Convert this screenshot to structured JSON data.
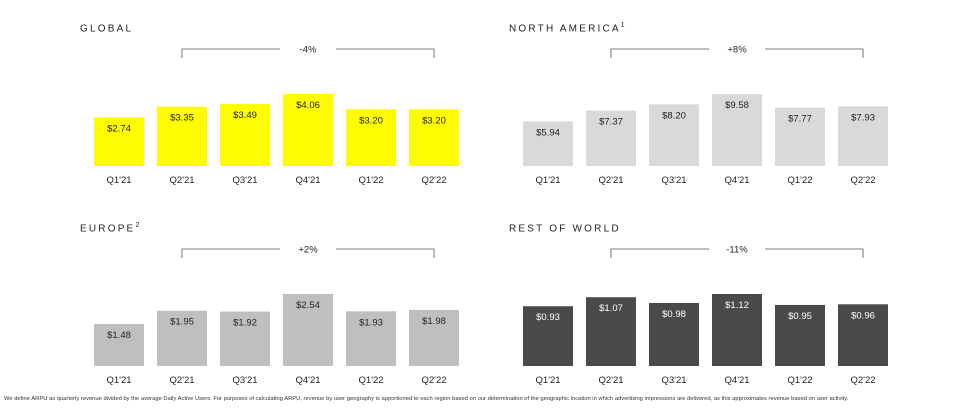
{
  "footnote": "We define ARPU as quarterly revenue divided by the average Daily Active Users. For purposes of calculating ARPU, revenue by user geography is apportioned to each region based on our determination of the geographic location in which advertising impressions are delivered, as this approximates revenue based on user activity.",
  "chart_data": [
    {
      "type": "bar",
      "title": "GLOBAL",
      "superscript": "",
      "categories": [
        "Q1'21",
        "Q2'21",
        "Q3'21",
        "Q4'21",
        "Q1'22",
        "Q2'22"
      ],
      "values": [
        2.74,
        3.35,
        3.49,
        4.06,
        3.2,
        3.2
      ],
      "labels": [
        "$2.74",
        "$3.35",
        "$3.49",
        "$4.06",
        "$3.20",
        "$3.20"
      ],
      "change": "-4%",
      "bar_color": "#FFFC00",
      "label_color": "#222222",
      "ylim": [
        0,
        4.06
      ]
    },
    {
      "type": "bar",
      "title": "NORTH AMERICA",
      "superscript": "1",
      "categories": [
        "Q1'21",
        "Q2'21",
        "Q3'21",
        "Q4'21",
        "Q1'22",
        "Q2'22"
      ],
      "values": [
        5.94,
        7.37,
        8.2,
        9.58,
        7.77,
        7.93
      ],
      "labels": [
        "$5.94",
        "$7.37",
        "$8.20",
        "$9.58",
        "$7.77",
        "$7.93"
      ],
      "change": "+8%",
      "bar_color": "#D9D9D9",
      "label_color": "#222222",
      "ylim": [
        0,
        9.58
      ]
    },
    {
      "type": "bar",
      "title": "EUROPE",
      "superscript": "2",
      "categories": [
        "Q1'21",
        "Q2'21",
        "Q3'21",
        "Q4'21",
        "Q1'22",
        "Q2'22"
      ],
      "values": [
        1.48,
        1.95,
        1.92,
        2.54,
        1.93,
        1.98
      ],
      "labels": [
        "$1.48",
        "$1.95",
        "$1.92",
        "$2.54",
        "$1.93",
        "$1.98"
      ],
      "change": "+2%",
      "bar_color": "#BFBFBF",
      "label_color": "#222222",
      "ylim": [
        0,
        2.54
      ]
    },
    {
      "type": "bar",
      "title": "REST OF WORLD",
      "superscript": "",
      "categories": [
        "Q1'21",
        "Q2'21",
        "Q3'21",
        "Q4'21",
        "Q1'22",
        "Q2'22"
      ],
      "values": [
        0.93,
        1.07,
        0.98,
        1.12,
        0.95,
        0.96
      ],
      "labels": [
        "$0.93",
        "$1.07",
        "$0.98",
        "$1.12",
        "$0.95",
        "$0.96"
      ],
      "change": "-11%",
      "bar_color": "#4A4A4A",
      "label_color": "#FFFFFF",
      "ylim": [
        0,
        1.12
      ]
    }
  ]
}
